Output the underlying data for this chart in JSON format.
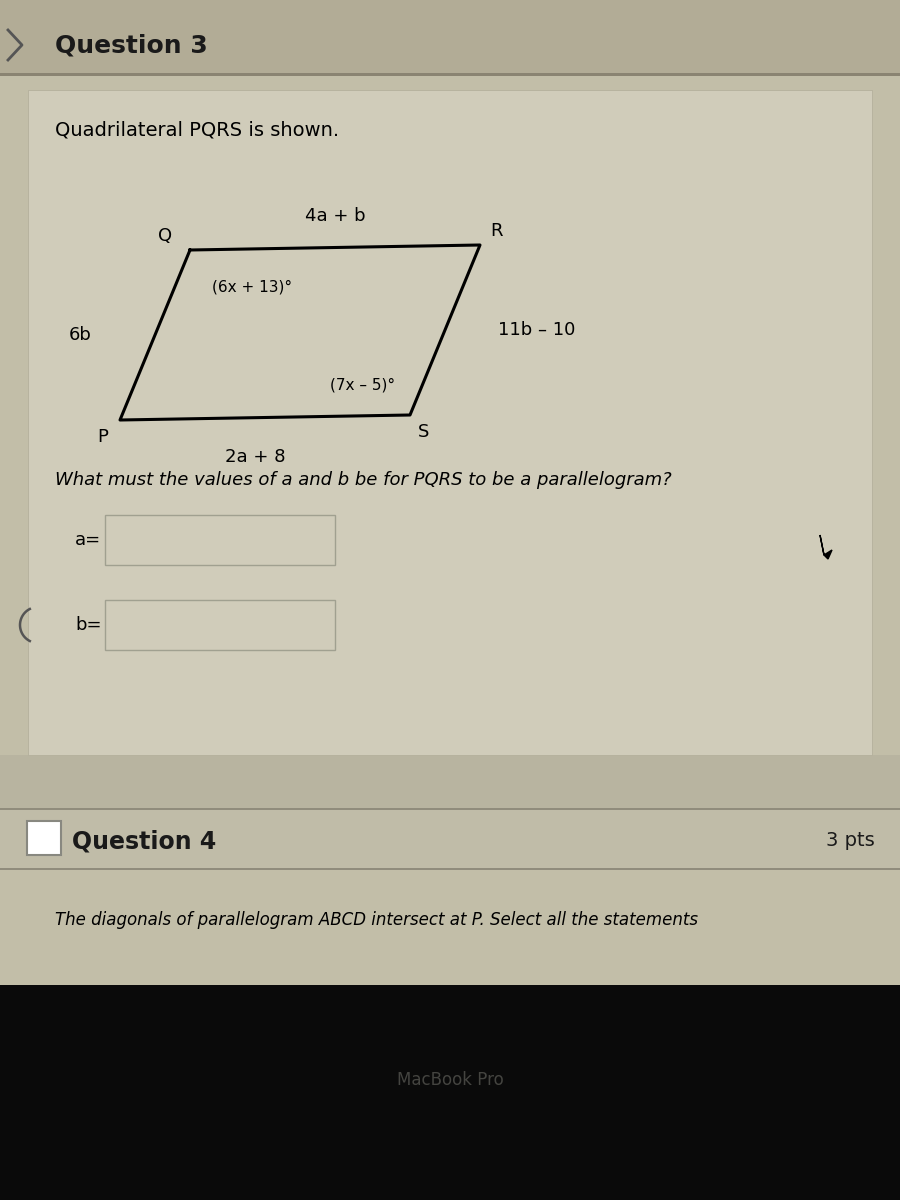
{
  "bg_color_overall": "#b8b5a0",
  "bg_color_header": "#b0aa92",
  "bg_color_content": "#c5c0aa",
  "bg_color_white_box": "#dddbd0",
  "bg_color_input": "#d5d2c0",
  "bg_color_gap": "#c8c4b0",
  "bg_color_q4_header": "#c8c4b0",
  "bg_color_q4_content": "#c5c0aa",
  "bg_black": "#080808",
  "question3_title": "Question 3",
  "subtitle": "Quadrilateral PQRS is shown.",
  "top_side_label": "4a + b",
  "bottom_side_label": "2a + 8",
  "left_side_label": "6b",
  "right_side_label": "11b – 10",
  "top_left_angle": "(6x + 13)°",
  "bottom_right_angle": "(7x – 5)°",
  "vertex_Q": "Q",
  "vertex_R": "R",
  "vertex_P": "P",
  "vertex_S": "S",
  "question_text": "What must the values of a and b be for PQRS to be a parallelogram?",
  "label_a": "a=",
  "label_b": "b=",
  "question4_title": "Question 4",
  "question4_pts": "3 pts",
  "question4_text": "The diagonals of parallelogram ABCD intersect at P. Select all the statements",
  "macbook_text": "MacBook Pro",
  "fig_width": 9.0,
  "fig_height": 12.0,
  "dpi": 100
}
